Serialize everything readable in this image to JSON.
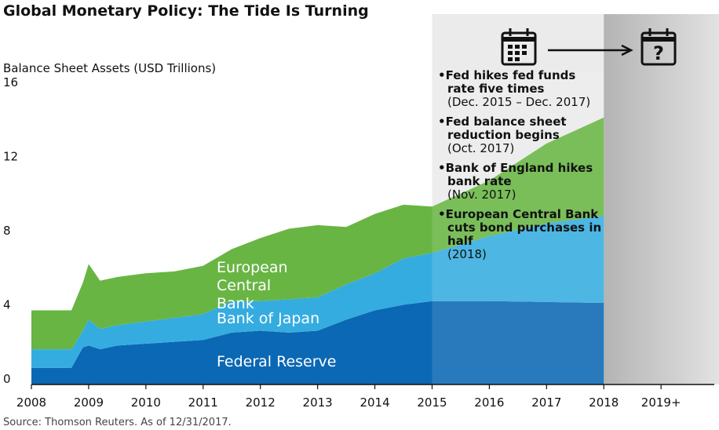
{
  "chart_data": {
    "type": "stacked_area",
    "title": "Global Monetary Policy: The Tide Is Turning",
    "y_label": "Balance Sheet Assets (USD Trillions)",
    "source": "Source: Thomson Reuters. As of 12/31/2017.",
    "x": [
      2008,
      2008.7,
      2008.9,
      2009,
      2009.2,
      2009.5,
      2010,
      2010.5,
      2011,
      2011.5,
      2012,
      2012.5,
      2013,
      2013.5,
      2014,
      2014.5,
      2015,
      2016,
      2017,
      2018
    ],
    "series": [
      {
        "name": "Federal Reserve",
        "color": "#0b68b4",
        "values": [
          0.9,
          0.9,
          2.0,
          2.1,
          1.9,
          2.1,
          2.2,
          2.3,
          2.4,
          2.8,
          2.9,
          2.8,
          2.9,
          3.5,
          4.0,
          4.3,
          4.5,
          4.5,
          4.45,
          4.4
        ]
      },
      {
        "name": "Bank of Japan",
        "color": "#35ace0",
        "values": [
          1.0,
          1.0,
          0.9,
          1.4,
          1.1,
          1.1,
          1.2,
          1.3,
          1.4,
          1.7,
          1.6,
          1.8,
          1.8,
          1.9,
          2.0,
          2.5,
          2.6,
          3.5,
          4.25,
          4.7
        ]
      },
      {
        "name": "European Central Bank",
        "color": "#68b544",
        "values": [
          2.1,
          2.1,
          2.6,
          3.0,
          2.6,
          2.6,
          2.6,
          2.5,
          2.6,
          2.8,
          3.4,
          3.8,
          3.9,
          3.1,
          3.2,
          2.9,
          2.5,
          3.0,
          4.3,
          5.3
        ]
      }
    ],
    "xlim": [
      2008,
      2019.93
    ],
    "xticks": [
      2008,
      2009,
      2010,
      2011,
      2012,
      2013,
      2014,
      2015,
      2016,
      2017,
      2018,
      {
        "value": 2019,
        "label": "2019+"
      }
    ],
    "ylim": [
      0,
      16
    ],
    "yticks": [
      0,
      4,
      8,
      12,
      16
    ],
    "annotations": [
      {
        "headline": "Fed hikes fed funds rate five times",
        "detail": "(Dec. 2015 – Dec. 2017)"
      },
      {
        "headline": "Fed balance sheet reduction begins",
        "detail": "(Oct. 2017)"
      },
      {
        "headline": "Bank of England hikes bank rate",
        "detail": "(Nov. 2017)"
      },
      {
        "headline": "European Central Bank cuts bond purchases in half",
        "detail": "(2018)"
      }
    ]
  }
}
